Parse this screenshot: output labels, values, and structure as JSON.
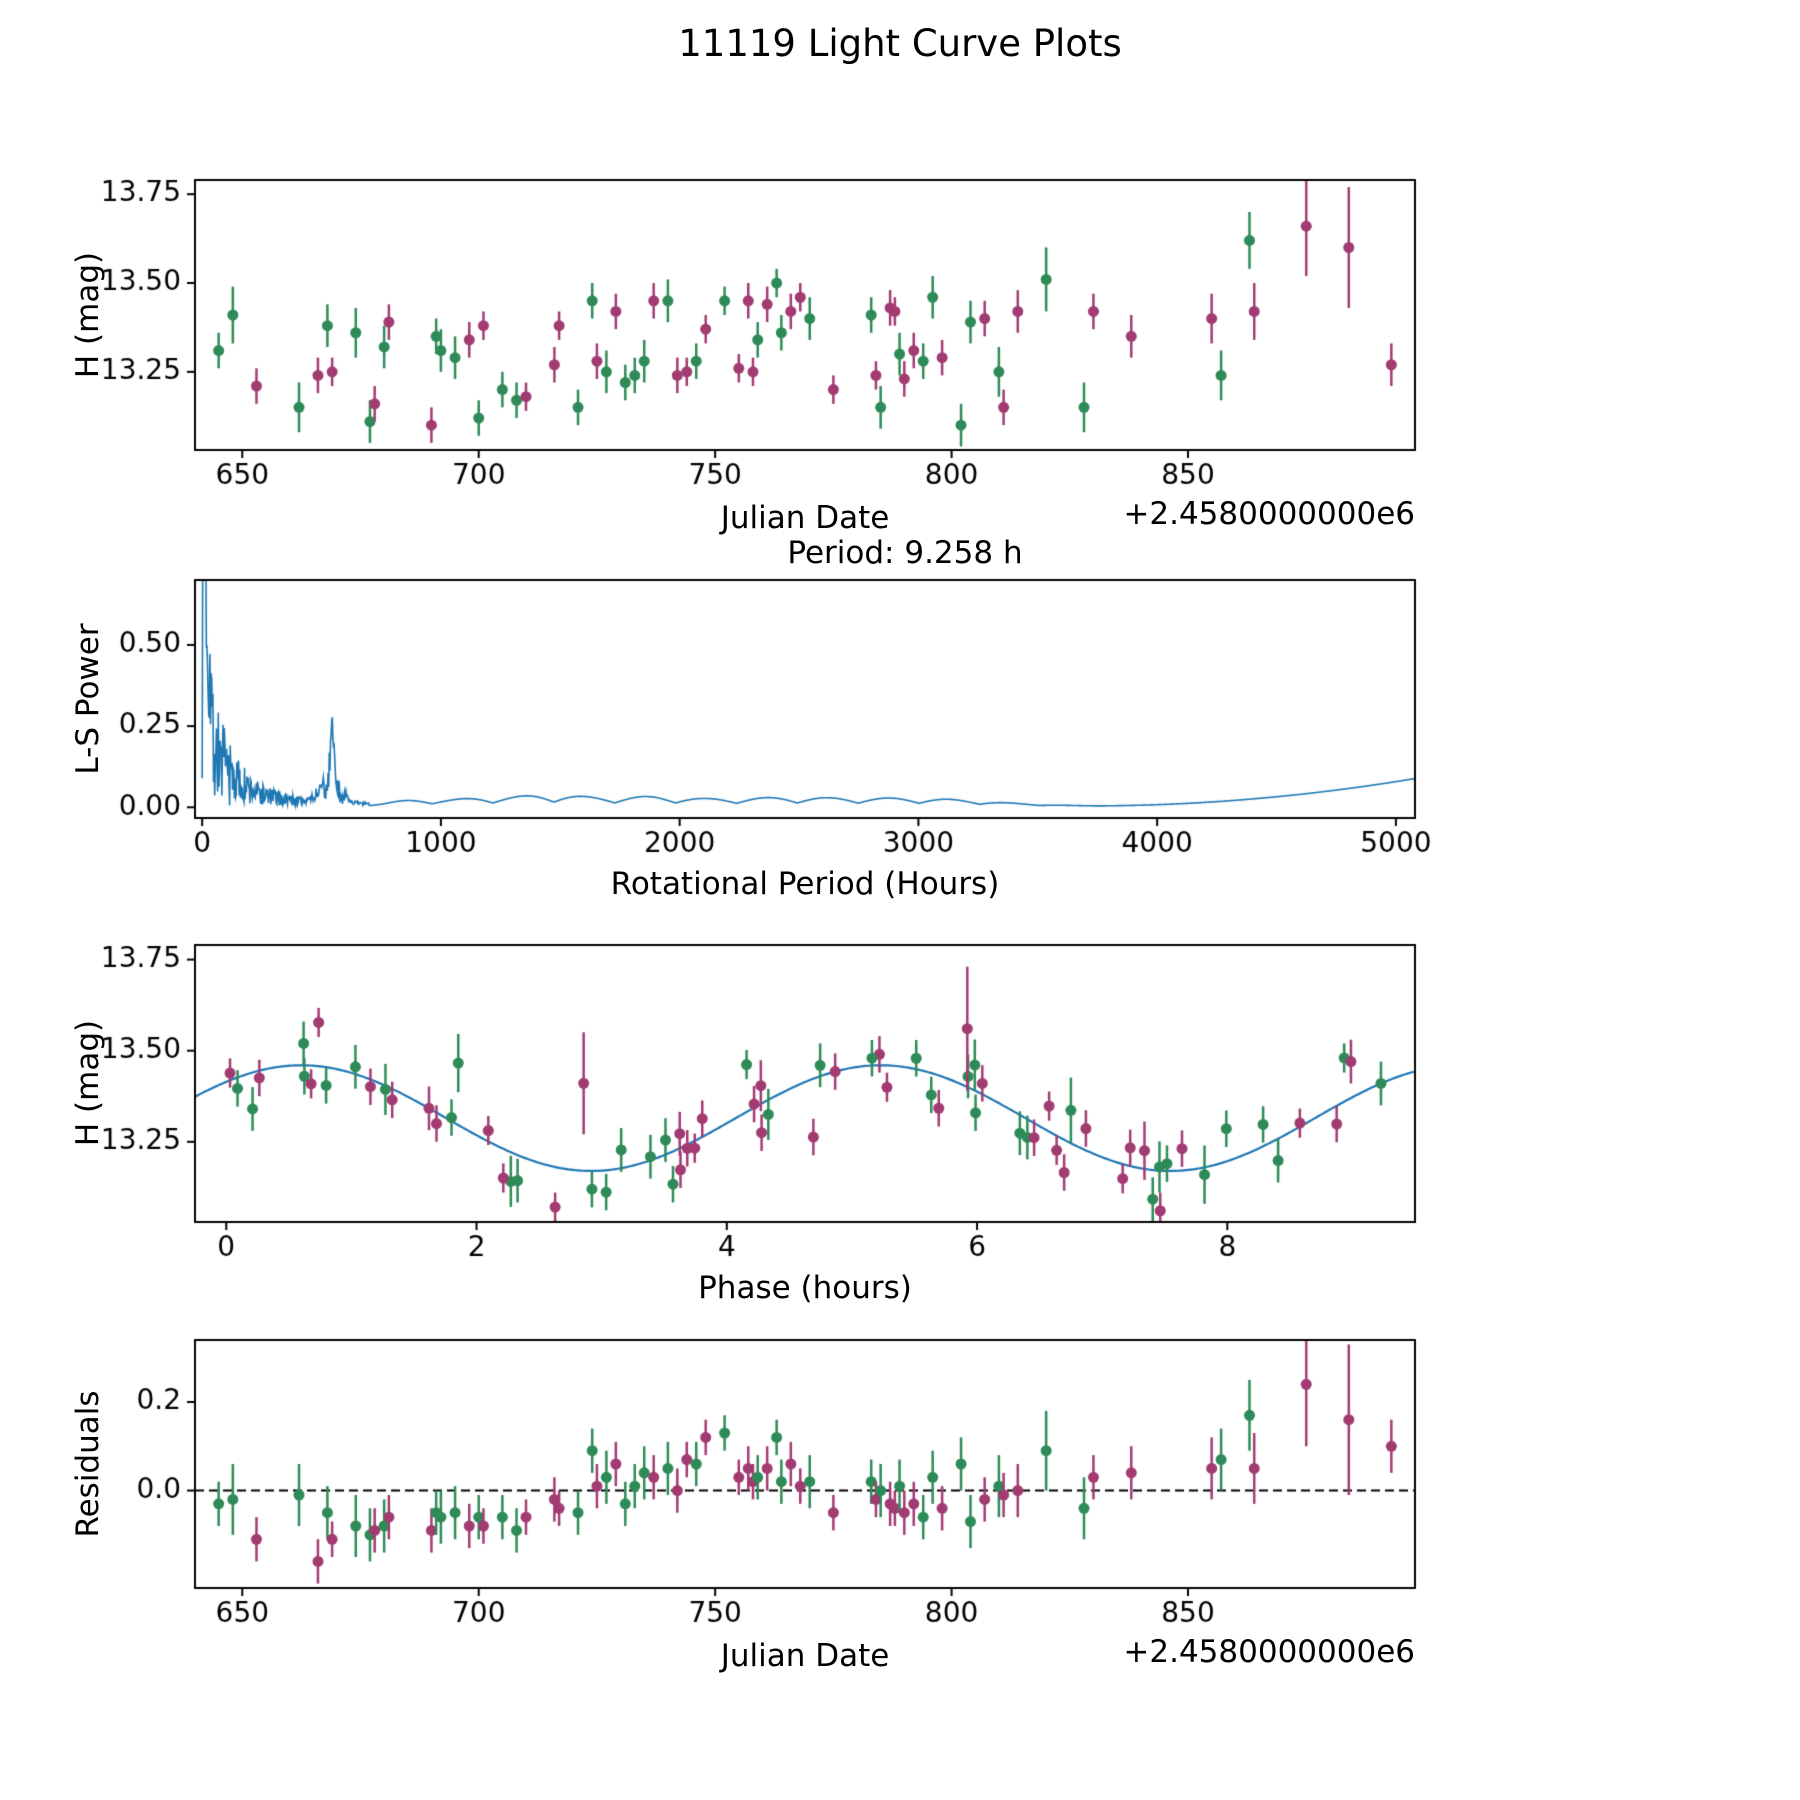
{
  "figure": {
    "title": "11119 Light Curve Plots"
  },
  "colors": {
    "green": "#2e8b57",
    "purple": "#a23b72",
    "line_blue": "#1f77b4",
    "axis": "#000000"
  },
  "chart_data": [
    {
      "type": "scatter",
      "id": "light-curve",
      "xlabel": "Julian Date",
      "ylabel": "H (mag)",
      "x_offset_label": "+2.4580000000e6",
      "xlim": [
        640,
        898
      ],
      "ylim": [
        13.03,
        13.79
      ],
      "xticks": [
        650,
        700,
        750,
        800,
        850
      ],
      "yticks": [
        13.25,
        13.5,
        13.75
      ],
      "ytick_labels": [
        "13.25",
        "13.50",
        "13.75"
      ],
      "grid": false,
      "legend": "none"
    },
    {
      "type": "line",
      "id": "periodogram",
      "xlabel": "Rotational Period (Hours)",
      "ylabel": "L-S Power",
      "annotation": "Period: 9.258 h",
      "xlim": [
        -30,
        5080
      ],
      "ylim": [
        -0.033,
        0.7
      ],
      "xticks": [
        0,
        1000,
        2000,
        3000,
        4000,
        5000
      ],
      "yticks": [
        0,
        0.25,
        0.5
      ],
      "ytick_labels": [
        "0.00",
        "0.25",
        "0.50"
      ],
      "best_period_hours": 9.258,
      "main_peak_power": 0.65,
      "secondary_peak": {
        "period": 545,
        "power": 0.21
      },
      "tail_power_at_5000": 0.075,
      "grid": false,
      "legend": "none"
    },
    {
      "type": "scatter_line",
      "id": "phase-folded",
      "xlabel": "Phase (hours)",
      "ylabel": "H (mag)",
      "xlim": [
        -0.25,
        9.5
      ],
      "ylim": [
        13.03,
        13.79
      ],
      "xticks": [
        0,
        2,
        4,
        6,
        8
      ],
      "yticks": [
        13.25,
        13.5,
        13.75
      ],
      "ytick_labels": [
        "13.25",
        "13.50",
        "13.75"
      ],
      "fit": {
        "mean": 13.315,
        "amplitude": 0.145,
        "period_hours": 9.258,
        "cycles": 2,
        "peak_phase": 0.6
      },
      "grid": false,
      "legend": "none"
    },
    {
      "type": "scatter",
      "id": "residuals",
      "xlabel": "Julian Date",
      "ylabel": "Residuals",
      "x_offset_label": "+2.4580000000e6",
      "xlim": [
        640,
        898
      ],
      "ylim": [
        -0.22,
        0.34
      ],
      "xticks": [
        650,
        700,
        750,
        800,
        850
      ],
      "yticks": [
        0,
        0.2
      ],
      "ytick_labels": [
        "0.0",
        "0.2"
      ],
      "hline": 0,
      "grid": false,
      "legend": "none"
    }
  ],
  "observations_note": "columns: julian_date_minus_2458000, H_mag, err_mag, band_color(g=green,p=purple), residual_mag",
  "observations": [
    [
      645,
      13.31,
      0.05,
      "g",
      -0.03
    ],
    [
      648,
      13.41,
      0.08,
      "g",
      -0.02
    ],
    [
      653,
      13.21,
      0.05,
      "p",
      -0.11
    ],
    [
      662,
      13.15,
      0.07,
      "g",
      -0.01
    ],
    [
      666,
      13.24,
      0.05,
      "p",
      -0.16
    ],
    [
      668,
      13.38,
      0.06,
      "g",
      -0.05
    ],
    [
      669,
      13.25,
      0.04,
      "p",
      -0.11
    ],
    [
      674,
      13.36,
      0.07,
      "g",
      -0.08
    ],
    [
      677,
      13.11,
      0.06,
      "g",
      -0.1
    ],
    [
      678,
      13.16,
      0.05,
      "p",
      -0.09
    ],
    [
      680,
      13.32,
      0.06,
      "g",
      -0.08
    ],
    [
      681,
      13.39,
      0.05,
      "p",
      -0.06
    ],
    [
      690,
      13.1,
      0.05,
      "p",
      -0.09
    ],
    [
      691,
      13.35,
      0.05,
      "g",
      -0.05
    ],
    [
      692,
      13.31,
      0.06,
      "g",
      -0.06
    ],
    [
      695,
      13.29,
      0.06,
      "g",
      -0.05
    ],
    [
      698,
      13.34,
      0.05,
      "p",
      -0.08
    ],
    [
      700,
      13.12,
      0.05,
      "g",
      -0.06
    ],
    [
      701,
      13.38,
      0.04,
      "p",
      -0.08
    ],
    [
      705,
      13.2,
      0.05,
      "g",
      -0.06
    ],
    [
      708,
      13.17,
      0.05,
      "g",
      -0.09
    ],
    [
      710,
      13.18,
      0.04,
      "p",
      -0.06
    ],
    [
      716,
      13.27,
      0.05,
      "p",
      -0.02
    ],
    [
      717,
      13.38,
      0.04,
      "p",
      -0.04
    ],
    [
      721,
      13.15,
      0.05,
      "g",
      -0.05
    ],
    [
      724,
      13.45,
      0.05,
      "g",
      0.09
    ],
    [
      725,
      13.28,
      0.05,
      "p",
      0.01
    ],
    [
      727,
      13.25,
      0.06,
      "g",
      0.03
    ],
    [
      729,
      13.42,
      0.05,
      "p",
      0.06
    ],
    [
      731,
      13.22,
      0.05,
      "g",
      -0.03
    ],
    [
      733,
      13.24,
      0.05,
      "g",
      0.01
    ],
    [
      735,
      13.28,
      0.06,
      "g",
      0.04
    ],
    [
      737,
      13.45,
      0.05,
      "p",
      0.03
    ],
    [
      740,
      13.45,
      0.06,
      "g",
      0.05
    ],
    [
      742,
      13.24,
      0.05,
      "p",
      0.0
    ],
    [
      744,
      13.25,
      0.04,
      "p",
      0.07
    ],
    [
      746,
      13.28,
      0.05,
      "g",
      0.06
    ],
    [
      748,
      13.37,
      0.04,
      "p",
      0.12
    ],
    [
      752,
      13.45,
      0.04,
      "g",
      0.13
    ],
    [
      755,
      13.26,
      0.04,
      "p",
      0.03
    ],
    [
      757,
      13.45,
      0.05,
      "p",
      0.05
    ],
    [
      758,
      13.25,
      0.04,
      "p",
      0.02
    ],
    [
      759,
      13.34,
      0.05,
      "g",
      0.03
    ],
    [
      761,
      13.44,
      0.05,
      "p",
      0.05
    ],
    [
      763,
      13.5,
      0.04,
      "g",
      0.12
    ],
    [
      764,
      13.36,
      0.05,
      "g",
      0.02
    ],
    [
      766,
      13.42,
      0.05,
      "p",
      0.06
    ],
    [
      768,
      13.46,
      0.04,
      "p",
      0.01
    ],
    [
      770,
      13.4,
      0.06,
      "g",
      0.02
    ],
    [
      775,
      13.2,
      0.04,
      "p",
      -0.05
    ],
    [
      783,
      13.41,
      0.05,
      "g",
      0.02
    ],
    [
      784,
      13.24,
      0.04,
      "p",
      -0.02
    ],
    [
      785,
      13.15,
      0.06,
      "g",
      0.0
    ],
    [
      787,
      13.43,
      0.05,
      "p",
      -0.03
    ],
    [
      788,
      13.42,
      0.04,
      "p",
      -0.04
    ],
    [
      789,
      13.3,
      0.06,
      "g",
      0.01
    ],
    [
      790,
      13.23,
      0.05,
      "p",
      -0.05
    ],
    [
      792,
      13.31,
      0.05,
      "p",
      -0.03
    ],
    [
      794,
      13.28,
      0.05,
      "g",
      -0.06
    ],
    [
      796,
      13.46,
      0.06,
      "g",
      0.03
    ],
    [
      798,
      13.29,
      0.05,
      "p",
      -0.04
    ],
    [
      802,
      13.1,
      0.06,
      "g",
      0.06
    ],
    [
      804,
      13.39,
      0.06,
      "g",
      -0.07
    ],
    [
      807,
      13.4,
      0.05,
      "p",
      -0.02
    ],
    [
      810,
      13.25,
      0.07,
      "g",
      0.01
    ],
    [
      811,
      13.15,
      0.05,
      "p",
      -0.01
    ],
    [
      814,
      13.42,
      0.06,
      "p",
      0.0
    ],
    [
      820,
      13.51,
      0.09,
      "g",
      0.09
    ],
    [
      828,
      13.15,
      0.07,
      "g",
      -0.04
    ],
    [
      830,
      13.42,
      0.05,
      "p",
      0.03
    ],
    [
      838,
      13.35,
      0.06,
      "p",
      0.04
    ],
    [
      855,
      13.4,
      0.07,
      "p",
      0.05
    ],
    [
      857,
      13.24,
      0.07,
      "g",
      0.07
    ],
    [
      863,
      13.62,
      0.08,
      "g",
      0.17
    ],
    [
      864,
      13.42,
      0.08,
      "p",
      0.05
    ],
    [
      875,
      13.66,
      0.14,
      "p",
      0.24
    ],
    [
      884,
      13.6,
      0.17,
      "p",
      0.16
    ],
    [
      893,
      13.27,
      0.06,
      "p",
      0.1
    ]
  ]
}
